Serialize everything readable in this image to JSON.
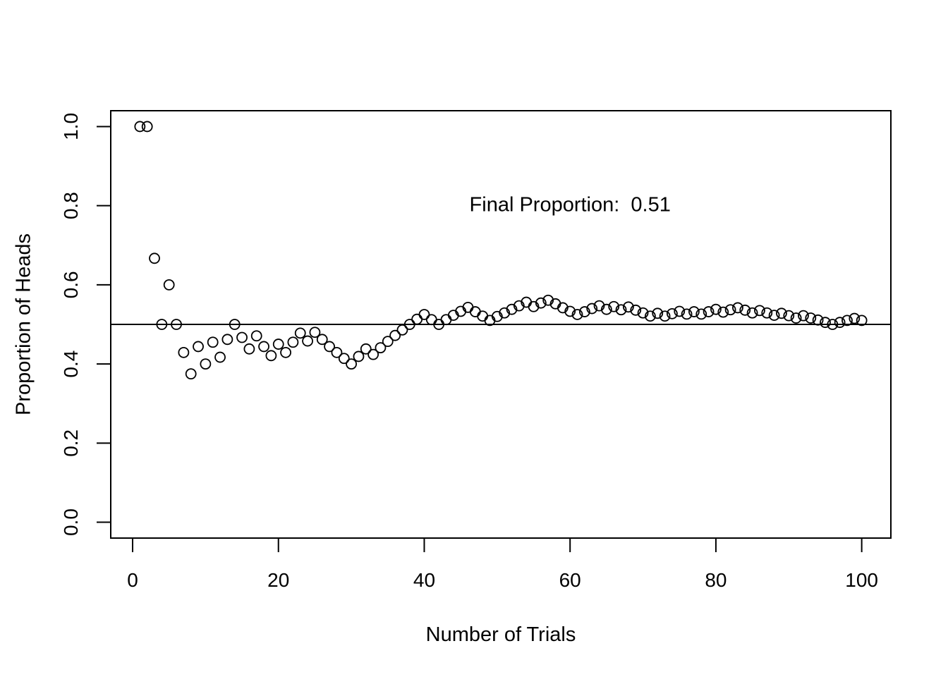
{
  "chart_data": {
    "type": "scatter",
    "title": "",
    "xlabel": "Number of Trials",
    "ylabel": "Proportion of Heads",
    "xlim": [
      -3,
      104
    ],
    "ylim": [
      -0.04,
      1.04
    ],
    "x_ticks": [
      0,
      20,
      40,
      60,
      80,
      100
    ],
    "x_tick_labels": [
      "0",
      "20",
      "40",
      "60",
      "80",
      "100"
    ],
    "y_ticks": [
      0.0,
      0.2,
      0.4,
      0.6,
      0.8,
      1.0
    ],
    "y_tick_labels": [
      "0.0",
      "0.2",
      "0.4",
      "0.6",
      "0.8",
      "1.0"
    ],
    "grid": false,
    "legend": "none",
    "reference_line": {
      "orientation": "horizontal",
      "y": 0.5
    },
    "annotation": {
      "text": "Final Proportion:  0.51",
      "x": 60,
      "y": 0.8
    },
    "marker": {
      "shape": "open-circle",
      "color": "#000000"
    },
    "series": [
      {
        "x": [
          1,
          2,
          3,
          4,
          5,
          6,
          7,
          8,
          9,
          10,
          11,
          12,
          13,
          14,
          15,
          16,
          17,
          18,
          19,
          20,
          21,
          22,
          23,
          24,
          25,
          26,
          27,
          28,
          29,
          30,
          31,
          32,
          33,
          34,
          35,
          36,
          37,
          38,
          39,
          40,
          41,
          42,
          43,
          44,
          45,
          46,
          47,
          48,
          49,
          50,
          51,
          52,
          53,
          54,
          55,
          56,
          57,
          58,
          59,
          60,
          61,
          62,
          63,
          64,
          65,
          66,
          67,
          68,
          69,
          70,
          71,
          72,
          73,
          74,
          75,
          76,
          77,
          78,
          79,
          80,
          81,
          82,
          83,
          84,
          85,
          86,
          87,
          88,
          89,
          90,
          91,
          92,
          93,
          94,
          95,
          96,
          97,
          98,
          99,
          100
        ],
        "y": [
          1.0,
          1.0,
          0.667,
          0.5,
          0.6,
          0.5,
          0.429,
          0.375,
          0.444,
          0.4,
          0.455,
          0.417,
          0.462,
          0.5,
          0.467,
          0.438,
          0.471,
          0.444,
          0.421,
          0.45,
          0.429,
          0.455,
          0.478,
          0.458,
          0.48,
          0.462,
          0.444,
          0.429,
          0.414,
          0.4,
          0.419,
          0.438,
          0.424,
          0.441,
          0.457,
          0.472,
          0.486,
          0.5,
          0.513,
          0.525,
          0.512,
          0.5,
          0.512,
          0.523,
          0.533,
          0.543,
          0.532,
          0.521,
          0.51,
          0.52,
          0.529,
          0.538,
          0.547,
          0.556,
          0.545,
          0.554,
          0.561,
          0.552,
          0.542,
          0.533,
          0.525,
          0.532,
          0.54,
          0.547,
          0.538,
          0.545,
          0.537,
          0.544,
          0.536,
          0.529,
          0.521,
          0.528,
          0.521,
          0.527,
          0.533,
          0.526,
          0.532,
          0.526,
          0.532,
          0.538,
          0.531,
          0.537,
          0.542,
          0.536,
          0.529,
          0.535,
          0.529,
          0.523,
          0.528,
          0.522,
          0.516,
          0.522,
          0.516,
          0.511,
          0.505,
          0.5,
          0.505,
          0.51,
          0.515,
          0.51
        ]
      }
    ]
  }
}
